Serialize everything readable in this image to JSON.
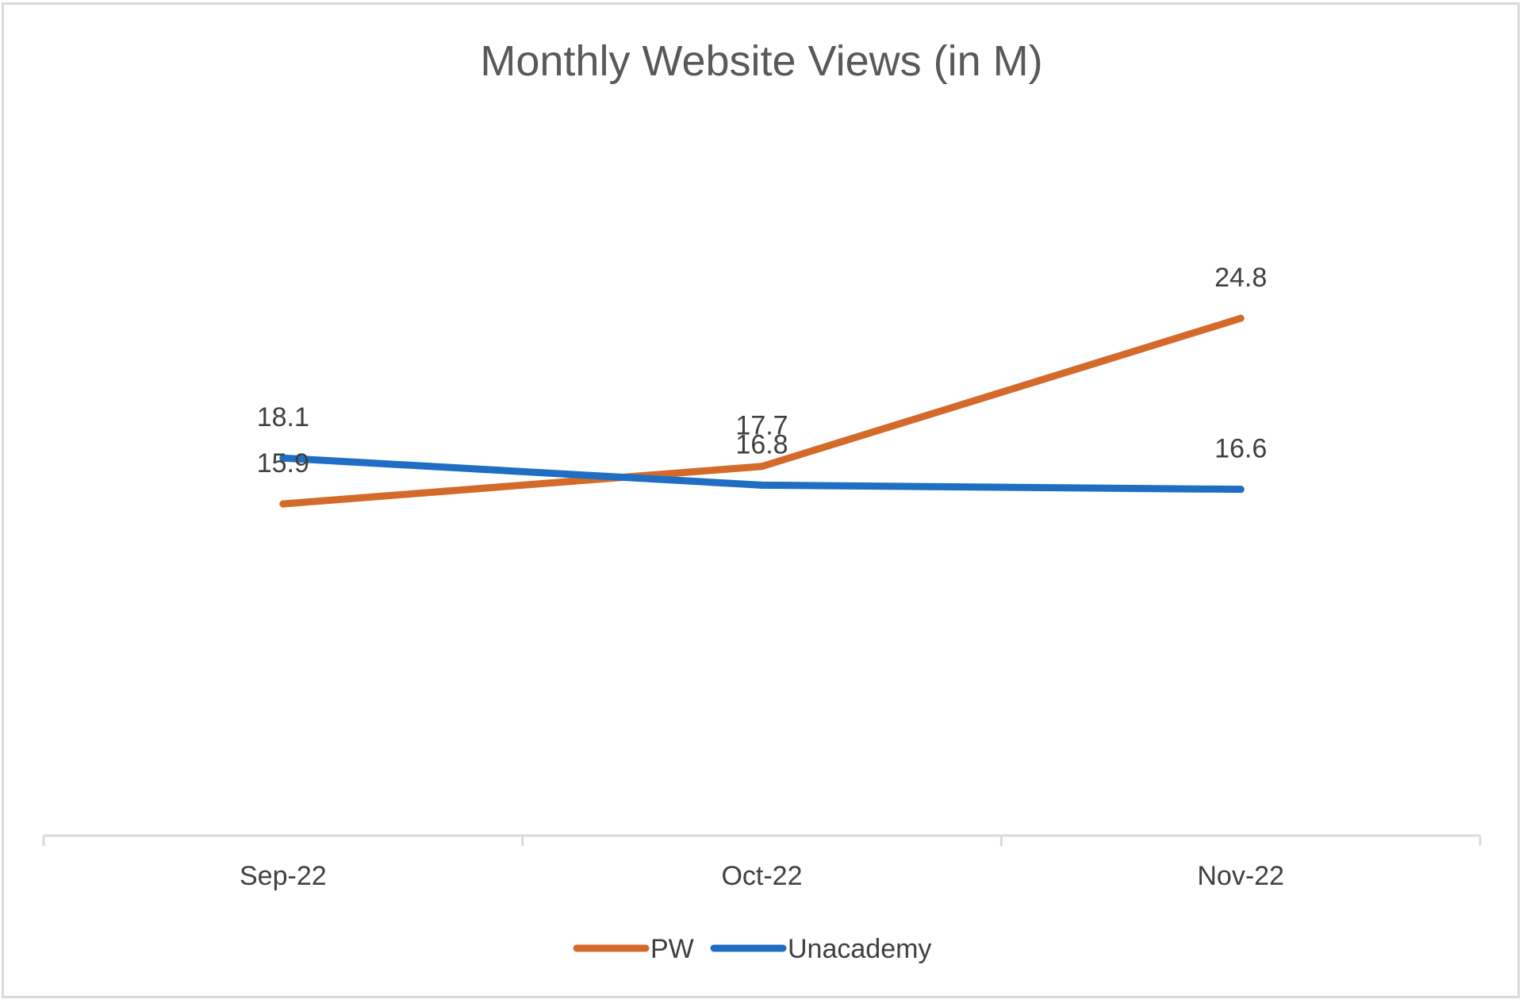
{
  "chart_data": {
    "type": "line",
    "title": "Monthly Website Views (in M)",
    "xlabel": "",
    "ylabel": "",
    "categories": [
      "Sep-22",
      "Oct-22",
      "Nov-22"
    ],
    "series": [
      {
        "name": "PW",
        "values": [
          15.9,
          17.7,
          24.8
        ],
        "color": "#d46a2a",
        "labels": [
          "15.9",
          "17.7",
          "24.8"
        ]
      },
      {
        "name": "Unacademy",
        "values": [
          18.1,
          16.8,
          16.6
        ],
        "color": "#1f6ec4",
        "labels": [
          "18.1",
          "16.8",
          "16.6"
        ]
      }
    ],
    "ylim": [
      0,
      35
    ],
    "grid": false,
    "legend_position": "bottom",
    "axis_color": "#d9d9d9"
  }
}
